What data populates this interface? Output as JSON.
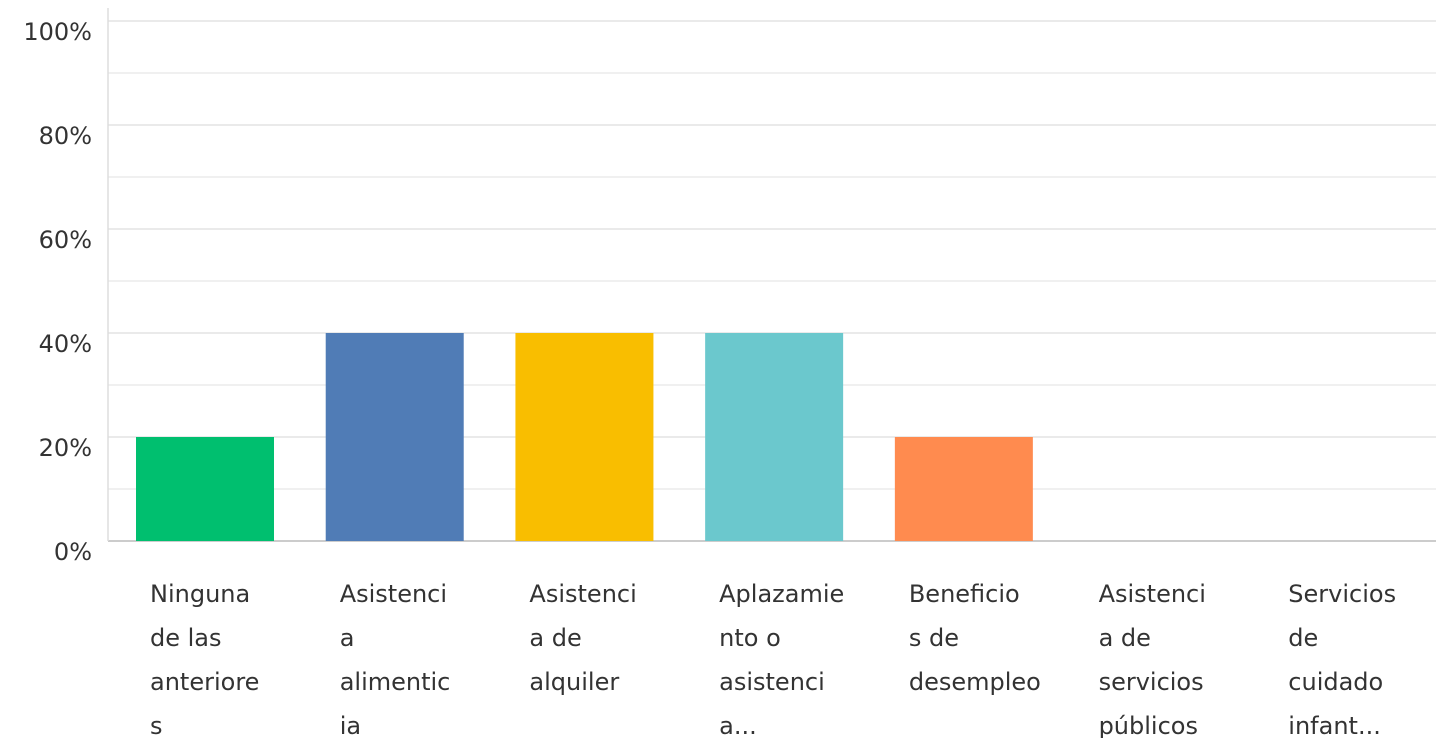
{
  "chart_data": {
    "type": "bar",
    "categories": [
      [
        "Ninguna",
        "de las",
        "anteriore",
        "s"
      ],
      [
        "Asistenci",
        "a",
        "alimentic",
        "ia"
      ],
      [
        "Asistenci",
        "a de",
        "alquiler"
      ],
      [
        "Aplazamie",
        "nto o",
        "asistenci",
        "a..."
      ],
      [
        "Beneficio",
        "s de",
        "desempleo"
      ],
      [
        "Asistenci",
        "a de",
        "servicios",
        "públicos"
      ],
      [
        "Servicios",
        "de",
        "cuidado",
        "infant..."
      ]
    ],
    "values": [
      20,
      40,
      40,
      40,
      20,
      0,
      0
    ],
    "colors": [
      "#00bf6f",
      "#507cb6",
      "#f9be00",
      "#6bc8cd",
      "#ff8b4f",
      "#7f7fff",
      "#c0c0c0"
    ],
    "ylim": [
      0,
      100
    ],
    "yticks": [
      {
        "value": 0,
        "label": "0%"
      },
      {
        "value": 20,
        "label": "20%"
      },
      {
        "value": 40,
        "label": "40%"
      },
      {
        "value": 60,
        "label": "60%"
      },
      {
        "value": 80,
        "label": "80%"
      },
      {
        "value": 100,
        "label": "100%"
      }
    ],
    "minor_yticks": [
      10,
      30,
      50,
      70,
      90
    ],
    "grid": true
  }
}
